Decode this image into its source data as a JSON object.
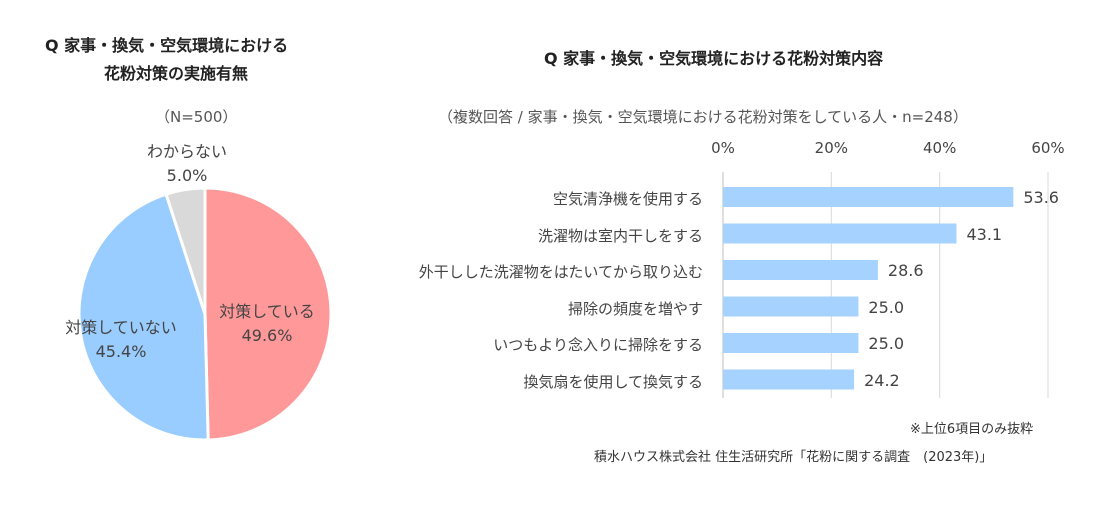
{
  "pie": {
    "title_line1": "Q 家事・換気・空気環境における",
    "title_line2": "花粉対策の実施有無",
    "subtitle": "（N=500）",
    "chart_data": {
      "type": "pie",
      "slices": [
        {
          "label": "対策している",
          "value": 49.6,
          "value_text": "49.6%",
          "color": "#ff9999"
        },
        {
          "label": "対策していない",
          "value": 45.4,
          "value_text": "45.4%",
          "color": "#99ccff"
        },
        {
          "label": "わからない",
          "value": 5.0,
          "value_text": "5.0%",
          "color": "#d9d9d9"
        }
      ]
    }
  },
  "bar": {
    "title": "Q 家事・換気・空気環境における花粉対策内容",
    "subtitle": "（複数回答 / 家事・換気・空気環境における花粉対策をしている人・n=248）",
    "chart_data": {
      "type": "bar",
      "orientation": "horizontal",
      "categories": [
        "空気清浄機を使用する",
        "洗濯物は室内干しをする",
        "外干しした洗濯物をはたいてから取り込む",
        "掃除の頻度を増やす",
        "いつもより念入りに掃除をする",
        "換気扇を使用して換気する"
      ],
      "values": [
        53.6,
        43.1,
        28.6,
        25.0,
        25.0,
        24.2
      ],
      "value_labels": [
        "53.6",
        "43.1",
        "28.6",
        "25.0",
        "25.0",
        "24.2"
      ],
      "xlim": [
        0,
        60
      ],
      "ticks": [
        "0%",
        "20%",
        "40%",
        "60%"
      ],
      "bar_color": "#a6d2ff",
      "grid": true
    },
    "note": "※上位6項目のみ抜粋"
  },
  "source": "積水ハウス株式会社 住生活研究所「花粉に関する調査　(2023年)」"
}
